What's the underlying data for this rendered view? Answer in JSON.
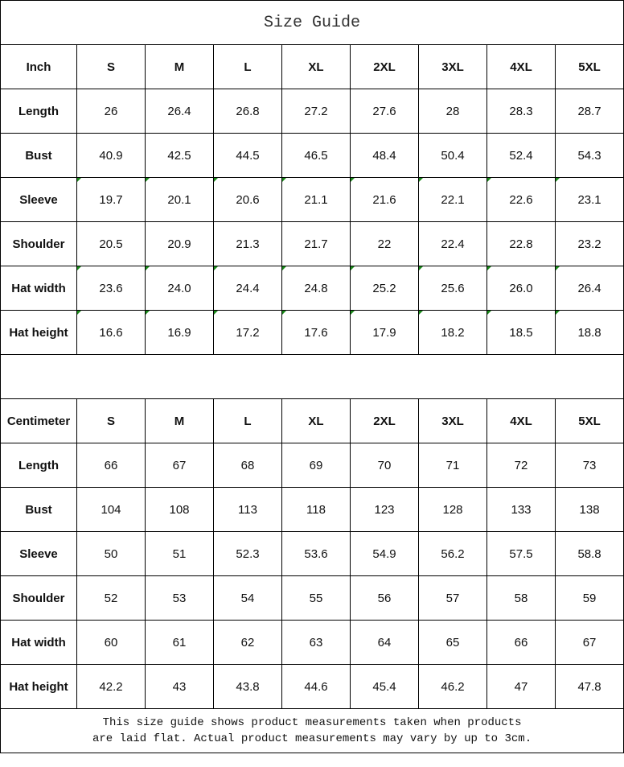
{
  "title": "Size Guide",
  "sizes": [
    "S",
    "M",
    "L",
    "XL",
    "2XL",
    "3XL",
    "4XL",
    "5XL"
  ],
  "inch": {
    "unit_label": "Inch",
    "rows": [
      {
        "label": "Length",
        "values": [
          "26",
          "26.4",
          "26.8",
          "27.2",
          "27.6",
          "28",
          "28.3",
          "28.7"
        ],
        "marked": false
      },
      {
        "label": "Bust",
        "values": [
          "40.9",
          "42.5",
          "44.5",
          "46.5",
          "48.4",
          "50.4",
          "52.4",
          "54.3"
        ],
        "marked": false
      },
      {
        "label": "Sleeve",
        "values": [
          "19.7",
          "20.1",
          "20.6",
          "21.1",
          "21.6",
          "22.1",
          "22.6",
          "23.1"
        ],
        "marked": true
      },
      {
        "label": "Shoulder",
        "values": [
          "20.5",
          "20.9",
          "21.3",
          "21.7",
          "22",
          "22.4",
          "22.8",
          "23.2"
        ],
        "marked": false
      },
      {
        "label": "Hat width",
        "values": [
          "23.6",
          "24.0",
          "24.4",
          "24.8",
          "25.2",
          "25.6",
          "26.0",
          "26.4"
        ],
        "marked": true
      },
      {
        "label": "Hat height",
        "values": [
          "16.6",
          "16.9",
          "17.2",
          "17.6",
          "17.9",
          "18.2",
          "18.5",
          "18.8"
        ],
        "marked": true
      }
    ]
  },
  "centimeter": {
    "unit_label": "Centimeter",
    "rows": [
      {
        "label": "Length",
        "values": [
          "66",
          "67",
          "68",
          "69",
          "70",
          "71",
          "72",
          "73"
        ],
        "marked": false
      },
      {
        "label": "Bust",
        "values": [
          "104",
          "108",
          "113",
          "118",
          "123",
          "128",
          "133",
          "138"
        ],
        "marked": false
      },
      {
        "label": "Sleeve",
        "values": [
          "50",
          "51",
          "52.3",
          "53.6",
          "54.9",
          "56.2",
          "57.5",
          "58.8"
        ],
        "marked": false
      },
      {
        "label": "Shoulder",
        "values": [
          "52",
          "53",
          "54",
          "55",
          "56",
          "57",
          "58",
          "59"
        ],
        "marked": false
      },
      {
        "label": "Hat width",
        "values": [
          "60",
          "61",
          "62",
          "63",
          "64",
          "65",
          "66",
          "67"
        ],
        "marked": false
      },
      {
        "label": "Hat height",
        "values": [
          "42.2",
          "43",
          "43.8",
          "44.6",
          "45.4",
          "46.2",
          "47",
          "47.8"
        ],
        "marked": false
      }
    ]
  },
  "note_lines": [
    "This size guide shows product measurements taken when products",
    "are laid flat. Actual product measurements may vary by up to 3cm."
  ],
  "colors": {
    "marker": "#1a8a1a",
    "border": "#000000"
  }
}
